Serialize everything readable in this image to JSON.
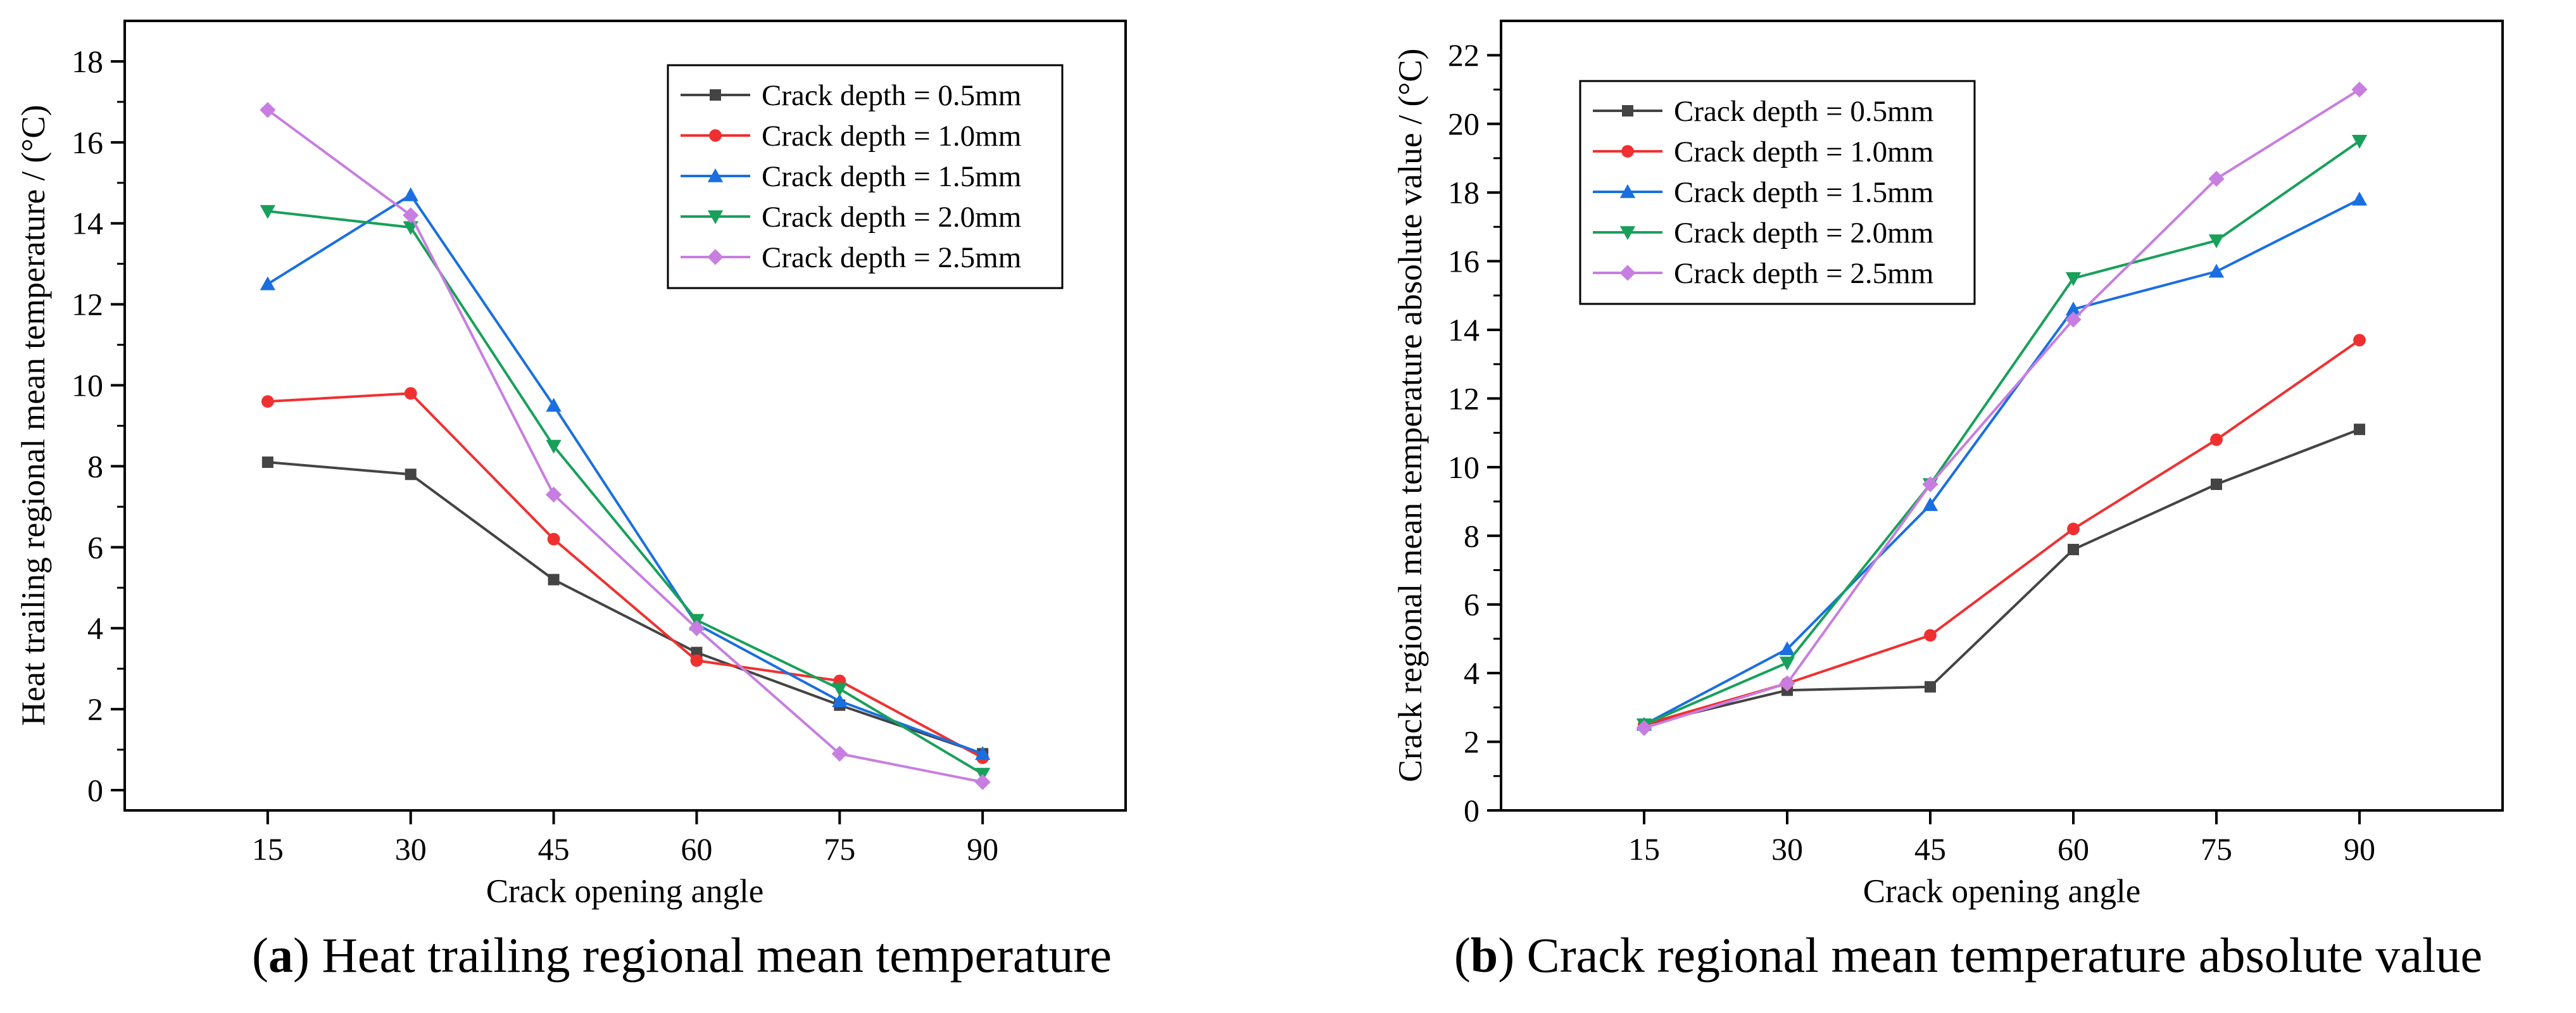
{
  "chart_data": [
    {
      "type": "line",
      "panel": "a",
      "caption_letter": "a",
      "caption_text": " Heat trailing regional mean temperature",
      "xlabel": "Crack opening angle",
      "ylabel": "Heat trailing regional mean temperature / (°C)",
      "x": [
        15,
        30,
        45,
        60,
        75,
        90
      ],
      "xlim": [
        0,
        105
      ],
      "ylim": [
        -0.5,
        19
      ],
      "yticks": [
        0,
        2,
        4,
        6,
        8,
        10,
        12,
        14,
        16,
        18
      ],
      "grid": false,
      "legend_position": "top-right",
      "series": [
        {
          "name": "Crack depth = 0.5mm",
          "color": "#444444",
          "marker": "square",
          "values": [
            8.1,
            7.8,
            5.2,
            3.4,
            2.1,
            0.9
          ]
        },
        {
          "name": "Crack depth = 1.0mm",
          "color": "#f03030",
          "marker": "circle",
          "values": [
            9.6,
            9.8,
            6.2,
            3.2,
            2.7,
            0.8
          ]
        },
        {
          "name": "Crack depth = 1.5mm",
          "color": "#1a6fe0",
          "marker": "triangle-up",
          "values": [
            12.5,
            14.7,
            9.5,
            4.1,
            2.2,
            0.9
          ]
        },
        {
          "name": "Crack depth = 2.0mm",
          "color": "#17a05a",
          "marker": "triangle-down",
          "values": [
            14.3,
            13.9,
            8.5,
            4.2,
            2.5,
            0.4
          ]
        },
        {
          "name": "Crack depth = 2.5mm",
          "color": "#c77ee0",
          "marker": "diamond",
          "values": [
            16.8,
            14.2,
            7.3,
            4.0,
            0.9,
            0.2
          ]
        }
      ]
    },
    {
      "type": "line",
      "panel": "b",
      "caption_letter": "b",
      "caption_text": " Crack regional mean temperature absolute value",
      "xlabel": "Crack opening angle",
      "ylabel": "Crack regional mean temperature absolute value / (°C)",
      "x": [
        15,
        30,
        45,
        60,
        75,
        90
      ],
      "xlim": [
        0,
        105
      ],
      "ylim": [
        0,
        23
      ],
      "yticks": [
        0,
        2,
        4,
        6,
        8,
        10,
        12,
        14,
        16,
        18,
        20,
        22
      ],
      "grid": false,
      "legend_position": "top-left",
      "series": [
        {
          "name": "Crack depth = 0.5mm",
          "color": "#444444",
          "marker": "square",
          "values": [
            2.5,
            3.5,
            3.6,
            7.6,
            9.5,
            11.1
          ]
        },
        {
          "name": "Crack depth = 1.0mm",
          "color": "#f03030",
          "marker": "circle",
          "values": [
            2.5,
            3.7,
            5.1,
            8.2,
            10.8,
            13.7
          ]
        },
        {
          "name": "Crack depth = 1.5mm",
          "color": "#1a6fe0",
          "marker": "triangle-up",
          "values": [
            2.5,
            4.7,
            8.9,
            14.6,
            15.7,
            17.8
          ]
        },
        {
          "name": "Crack depth = 2.0mm",
          "color": "#17a05a",
          "marker": "triangle-down",
          "values": [
            2.5,
            4.3,
            9.5,
            15.5,
            16.6,
            19.5
          ]
        },
        {
          "name": "Crack depth = 2.5mm",
          "color": "#c77ee0",
          "marker": "diamond",
          "values": [
            2.4,
            3.7,
            9.5,
            14.3,
            18.4,
            21.0
          ]
        }
      ]
    }
  ]
}
